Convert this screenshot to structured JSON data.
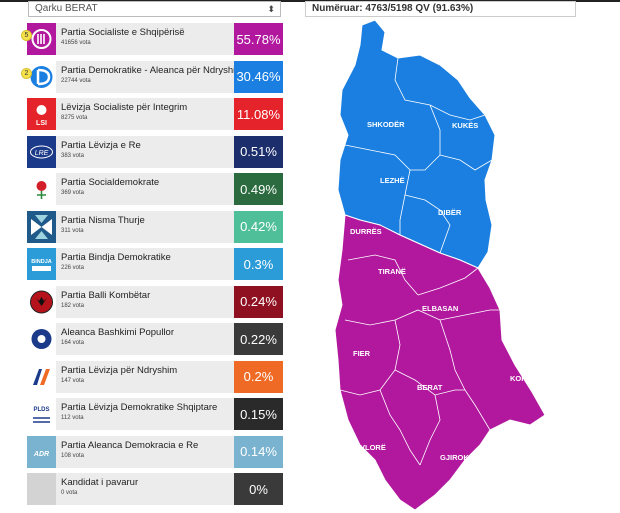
{
  "header": {
    "region_select": "Qarku BERAT",
    "counted_label": "Numëruar: 4763/5198 QV (91.63%)"
  },
  "parties": [
    {
      "name": "Partia Socialiste e Shqipërisë",
      "votes": "41656 vota",
      "percent": "55.78%",
      "color": "#b1189e",
      "seats": "5",
      "logo": "ps-logo-icon"
    },
    {
      "name": "Partia Demokratike - Aleanca për Ndryshim",
      "votes": "22744 vota",
      "percent": "30.46%",
      "color": "#1a7fe0",
      "seats": "2",
      "logo": "pd-logo-icon"
    },
    {
      "name": "Lëvizja Socialiste për Integrim",
      "votes": "8275 vota",
      "percent": "11.08%",
      "color": "#e4232a",
      "seats": "",
      "logo": "lsi-logo-icon"
    },
    {
      "name": "Partia Lëvizja e Re",
      "votes": "383 vota",
      "percent": "0.51%",
      "color": "#1c2e6b",
      "seats": "",
      "logo": "lre-logo-icon"
    },
    {
      "name": "Partia Socialdemokrate",
      "votes": "369 vota",
      "percent": "0.49%",
      "color": "#2b6b3f",
      "seats": "",
      "logo": "psd-rose-icon"
    },
    {
      "name": "Partia Nisma Thurje",
      "votes": "311 vota",
      "percent": "0.42%",
      "color": "#4fbf9a",
      "seats": "",
      "logo": "nisma-thurje-logo-icon"
    },
    {
      "name": "Partia Bindja Demokratike",
      "votes": "226 vota",
      "percent": "0.3%",
      "color": "#2b9cd8",
      "seats": "",
      "logo": "bindja-logo-icon"
    },
    {
      "name": "Partia Balli Kombëtar",
      "votes": "182 vota",
      "percent": "0.24%",
      "color": "#8f1020",
      "seats": "",
      "logo": "balli-eagle-icon"
    },
    {
      "name": "Aleanca Bashkimi Popullor",
      "votes": "164 vota",
      "percent": "0.22%",
      "color": "#3a3a3a",
      "seats": "",
      "logo": "abp-logo-icon"
    },
    {
      "name": "Partia Lëvizja për Ndryshim",
      "votes": "147 vota",
      "percent": "0.2%",
      "color": "#ef6a24",
      "seats": "",
      "logo": "lpn-logo-icon"
    },
    {
      "name": "Partia Lëvizja Demokratike Shqiptare",
      "votes": "112 vota",
      "percent": "0.15%",
      "color": "#2a2a2a",
      "seats": "",
      "logo": "plds-logo-icon"
    },
    {
      "name": "Partia Aleanca Demokracia e Re",
      "votes": "108 vota",
      "percent": "0.14%",
      "color": "#7ab3d0",
      "seats": "",
      "logo": "adr-logo-icon"
    },
    {
      "name": "Kandidat i pavarur",
      "votes": "0 vota",
      "percent": "0%",
      "color": "#3a3a3a",
      "seats": "",
      "logo": "placeholder-icon"
    }
  ],
  "map": {
    "regions": [
      {
        "name": "SHKODËR",
        "winner_color": "#1a7fe0"
      },
      {
        "name": "KUKËS",
        "winner_color": "#1a7fe0"
      },
      {
        "name": "LEZHË",
        "winner_color": "#1a7fe0"
      },
      {
        "name": "DIBËR",
        "winner_color": "#1a7fe0"
      },
      {
        "name": "DURRËS",
        "winner_color": "#b1189e"
      },
      {
        "name": "TIRANË",
        "winner_color": "#b1189e"
      },
      {
        "name": "ELBASAN",
        "winner_color": "#b1189e"
      },
      {
        "name": "FIER",
        "winner_color": "#b1189e"
      },
      {
        "name": "BERAT",
        "winner_color": "#b1189e"
      },
      {
        "name": "KORÇË",
        "winner_color": "#b1189e"
      },
      {
        "name": "VLORË",
        "winner_color": "#b1189e"
      },
      {
        "name": "GJIROKASTËR",
        "winner_color": "#b1189e"
      }
    ]
  }
}
